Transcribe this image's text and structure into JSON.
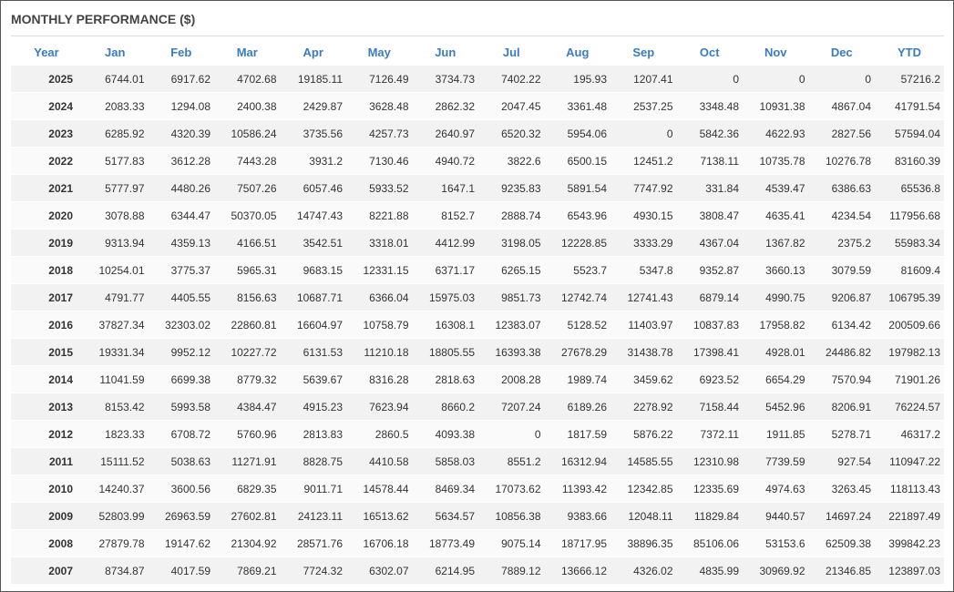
{
  "title": "MONTHLY PERFORMANCE ($)",
  "table": {
    "header": [
      "Year",
      "Jan",
      "Feb",
      "Mar",
      "Apr",
      "May",
      "Jun",
      "Jul",
      "Aug",
      "Sep",
      "Oct",
      "Nov",
      "Dec",
      "YTD"
    ],
    "rows": [
      [
        "2025",
        "6744.01",
        "6917.62",
        "4702.68",
        "19185.11",
        "7126.49",
        "3734.73",
        "7402.22",
        "195.93",
        "1207.41",
        "0",
        "0",
        "0",
        "57216.2"
      ],
      [
        "2024",
        "2083.33",
        "1294.08",
        "2400.38",
        "2429.87",
        "3628.48",
        "2862.32",
        "2047.45",
        "3361.48",
        "2537.25",
        "3348.48",
        "10931.38",
        "4867.04",
        "41791.54"
      ],
      [
        "2023",
        "6285.92",
        "4320.39",
        "10586.24",
        "3735.56",
        "4257.73",
        "2640.97",
        "6520.32",
        "5954.06",
        "0",
        "5842.36",
        "4622.93",
        "2827.56",
        "57594.04"
      ],
      [
        "2022",
        "5177.83",
        "3612.28",
        "7443.28",
        "3931.2",
        "7130.46",
        "4940.72",
        "3822.6",
        "6500.15",
        "12451.2",
        "7138.11",
        "10735.78",
        "10276.78",
        "83160.39"
      ],
      [
        "2021",
        "5777.97",
        "4480.26",
        "7507.26",
        "6057.46",
        "5933.52",
        "1647.1",
        "9235.83",
        "5891.54",
        "7747.92",
        "331.84",
        "4539.47",
        "6386.63",
        "65536.8"
      ],
      [
        "2020",
        "3078.88",
        "6344.47",
        "50370.05",
        "14747.43",
        "8221.88",
        "8152.7",
        "2888.74",
        "6543.96",
        "4930.15",
        "3808.47",
        "4635.41",
        "4234.54",
        "117956.68"
      ],
      [
        "2019",
        "9313.94",
        "4359.13",
        "4166.51",
        "3542.51",
        "3318.01",
        "4412.99",
        "3198.05",
        "12228.85",
        "3333.29",
        "4367.04",
        "1367.82",
        "2375.2",
        "55983.34"
      ],
      [
        "2018",
        "10254.01",
        "3775.37",
        "5965.31",
        "9683.15",
        "12331.15",
        "6371.17",
        "6265.15",
        "5523.7",
        "5347.8",
        "9352.87",
        "3660.13",
        "3079.59",
        "81609.4"
      ],
      [
        "2017",
        "4791.77",
        "4405.55",
        "8156.63",
        "10687.71",
        "6366.04",
        "15975.03",
        "9851.73",
        "12742.74",
        "12741.43",
        "6879.14",
        "4990.75",
        "9206.87",
        "106795.39"
      ],
      [
        "2016",
        "37827.34",
        "32303.02",
        "22860.81",
        "16604.97",
        "10758.79",
        "16308.1",
        "12383.07",
        "5128.52",
        "11403.97",
        "10837.83",
        "17958.82",
        "6134.42",
        "200509.66"
      ],
      [
        "2015",
        "19331.34",
        "9952.12",
        "10227.72",
        "6131.53",
        "11210.18",
        "18805.55",
        "16393.38",
        "27678.29",
        "31438.78",
        "17398.41",
        "4928.01",
        "24486.82",
        "197982.13"
      ],
      [
        "2014",
        "11041.59",
        "6699.38",
        "8779.32",
        "5639.67",
        "8316.28",
        "2818.63",
        "2008.28",
        "1989.74",
        "3459.62",
        "6923.52",
        "6654.29",
        "7570.94",
        "71901.26"
      ],
      [
        "2013",
        "8153.42",
        "5993.58",
        "4384.47",
        "4915.23",
        "7623.94",
        "8660.2",
        "7207.24",
        "6189.26",
        "2278.92",
        "7158.44",
        "5452.96",
        "8206.91",
        "76224.57"
      ],
      [
        "2012",
        "1823.33",
        "6708.72",
        "5760.96",
        "2813.83",
        "2860.5",
        "4093.38",
        "0",
        "1817.59",
        "5876.22",
        "7372.11",
        "1911.85",
        "5278.71",
        "46317.2"
      ],
      [
        "2011",
        "15111.52",
        "5038.63",
        "11271.91",
        "8828.75",
        "4410.58",
        "5858.03",
        "8551.2",
        "16312.94",
        "14585.55",
        "12310.98",
        "7739.59",
        "927.54",
        "110947.22"
      ],
      [
        "2010",
        "14240.37",
        "3600.56",
        "6829.35",
        "9011.71",
        "14578.44",
        "8469.34",
        "17073.62",
        "11393.42",
        "12342.85",
        "12335.69",
        "4974.63",
        "3263.45",
        "118113.43"
      ],
      [
        "2009",
        "52803.99",
        "26963.59",
        "27602.81",
        "24123.11",
        "16513.62",
        "5634.57",
        "10856.38",
        "9383.66",
        "12048.11",
        "11829.84",
        "9440.57",
        "14697.24",
        "221897.49"
      ],
      [
        "2008",
        "27879.78",
        "19147.62",
        "21304.92",
        "28571.76",
        "16706.18",
        "18773.49",
        "9075.14",
        "18717.95",
        "38896.35",
        "85106.06",
        "53153.6",
        "62509.38",
        "399842.23"
      ],
      [
        "2007",
        "8734.87",
        "4017.59",
        "7869.21",
        "7724.32",
        "6302.07",
        "6214.95",
        "7889.12",
        "13666.12",
        "4326.02",
        "4835.99",
        "30969.92",
        "21346.85",
        "123897.03"
      ]
    ]
  }
}
